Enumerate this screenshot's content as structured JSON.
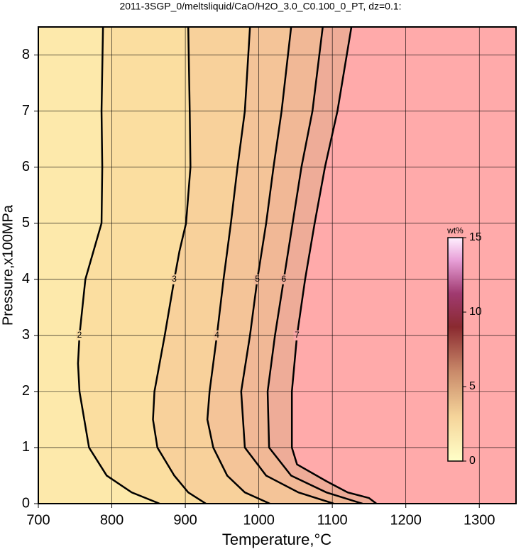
{
  "chart_data": {
    "type": "contour",
    "title": "2011-3SGP_0/meltsliquid/CaO/H2O_3.0_C0.100_0_PT, dz=0.1:",
    "x_label": "Temperature,°C",
    "y_label": "Pressure,x100MPa",
    "xlim": [
      700,
      1350
    ],
    "ylim": [
      0,
      8.5
    ],
    "xticks": [
      700,
      800,
      900,
      1000,
      1100,
      1200,
      1300
    ],
    "yticks": [
      0,
      1,
      2,
      3,
      4,
      5,
      6,
      7,
      8
    ],
    "grid": true,
    "background": "#fde9ab",
    "contours": [
      {
        "level": 2,
        "color": "#fbdea0",
        "x": [
          788,
          786,
          787,
          786,
          764,
          756,
          754,
          756,
          769,
          793,
          827,
          865
        ],
        "y": [
          8.5,
          7,
          6,
          5,
          4,
          3,
          2.5,
          2,
          1,
          0.5,
          0.2,
          0
        ]
      },
      {
        "level": 3,
        "color": "#f8d19b",
        "x": [
          904,
          906,
          907,
          901,
          892,
          885,
          872,
          858,
          856,
          862,
          885,
          904,
          928
        ],
        "y": [
          8.5,
          7,
          6,
          5,
          4.5,
          4,
          3,
          2,
          1.5,
          1,
          0.5,
          0.2,
          0
        ]
      },
      {
        "level": 4,
        "color": "#f4c498",
        "x": [
          988,
          981,
          971,
          962,
          952,
          943,
          933,
          930,
          938,
          957,
          981,
          1015
        ],
        "y": [
          8.5,
          7,
          6,
          5,
          4,
          3,
          2,
          1.5,
          1,
          0.5,
          0.2,
          0
        ]
      },
      {
        "level": 5,
        "color": "#f1b896",
        "x": [
          1044,
          1031,
          1020,
          1010,
          998,
          988,
          976,
          981,
          1010,
          1054,
          1102
        ],
        "y": [
          8.5,
          7,
          6,
          5,
          4,
          3,
          2,
          1,
          0.5,
          0.2,
          0
        ]
      },
      {
        "level": 6,
        "color": "#eeac98",
        "x": [
          1087,
          1073,
          1058,
          1046,
          1034,
          1022,
          1012,
          1014,
          1044,
          1092,
          1141
        ],
        "y": [
          8.5,
          7,
          6,
          5,
          4,
          3,
          2,
          1,
          0.5,
          0.2,
          0
        ]
      },
      {
        "level": 7,
        "color": "#ffaaaa",
        "x": [
          1126,
          1107,
          1090,
          1076,
          1063,
          1052,
          1045,
          1045,
          1052,
          1092,
          1121,
          1150,
          1160
        ],
        "y": [
          8.5,
          7,
          6,
          5,
          4,
          3,
          2,
          1,
          0.7,
          0.4,
          0.2,
          0.1,
          0
        ]
      }
    ],
    "colorbar": {
      "label": "wt%",
      "lim": [
        0,
        15
      ],
      "ticks": [
        0,
        5,
        10,
        15
      ]
    }
  }
}
